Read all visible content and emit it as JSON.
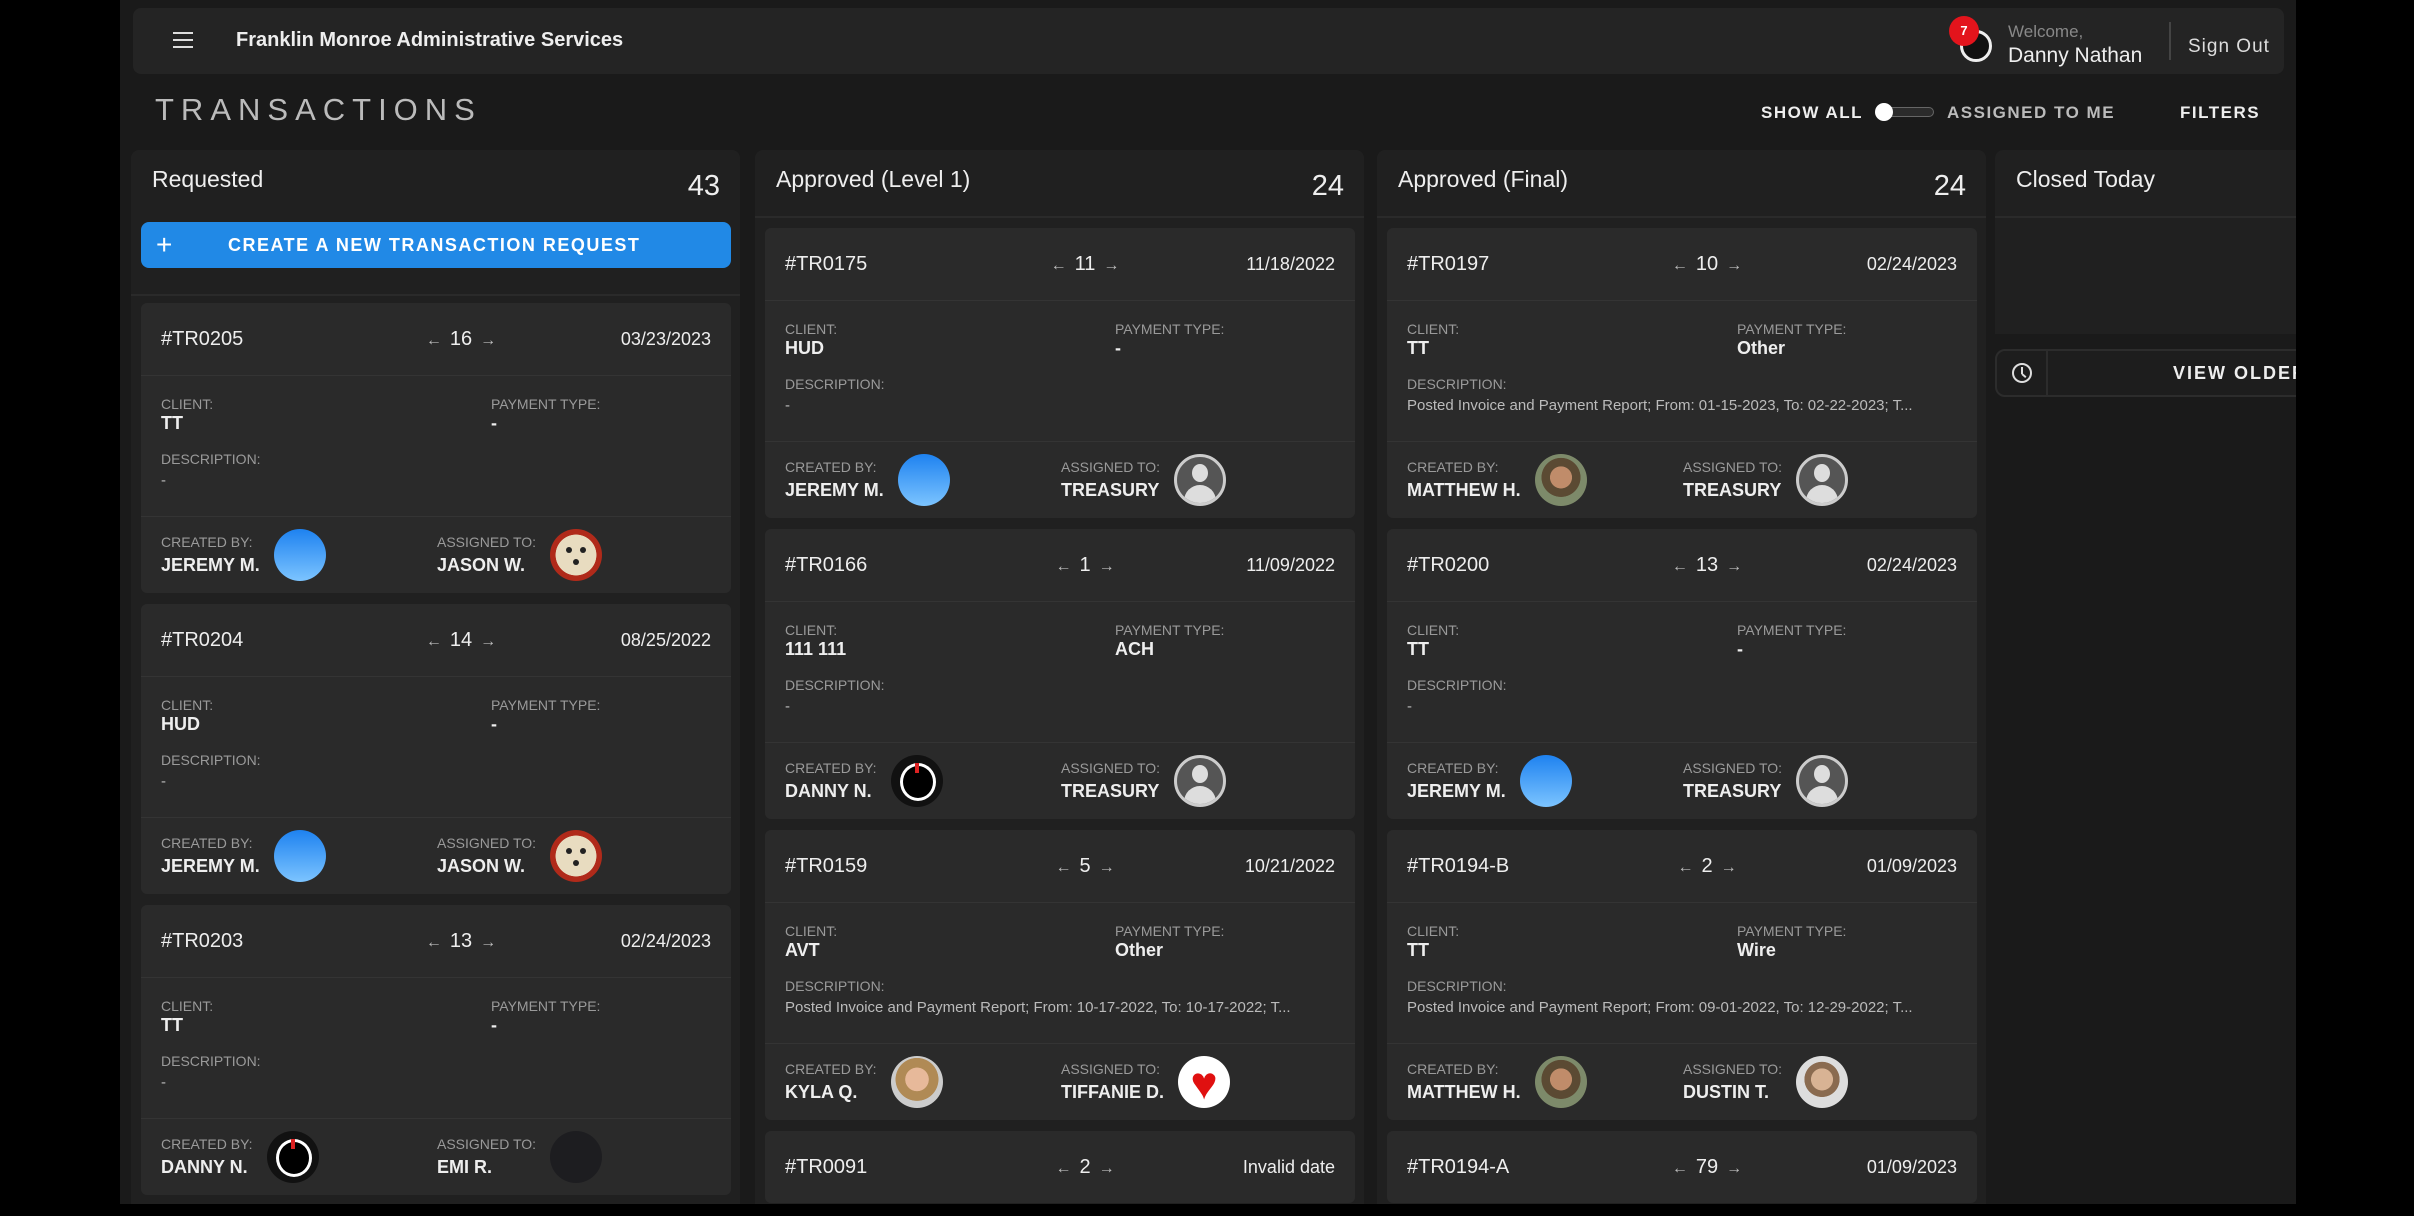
{
  "header": {
    "app_title": "Franklin Monroe Administrative Services",
    "notification_count": "7",
    "welcome": "Welcome,",
    "user_name": "Danny Nathan",
    "sign_out": "Sign Out"
  },
  "page": {
    "title": "TRANSACTIONS",
    "show_all": "SHOW ALL",
    "assigned_to_me": "ASSIGNED TO ME",
    "filters": "FILTERS",
    "toggle_assigned_to_me": false
  },
  "labels": {
    "client": "CLIENT:",
    "payment_type": "PAYMENT TYPE:",
    "description": "DESCRIPTION:",
    "created_by": "CREATED BY:",
    "assigned_to": "ASSIGNED TO:"
  },
  "columns": [
    {
      "title": "Requested",
      "count": "43",
      "create_label": "CREATE A NEW TRANSACTION REQUEST",
      "cards": [
        {
          "id": "#TR0205",
          "num": "16",
          "date": "03/23/2023",
          "client": "TT",
          "payment": "-",
          "description": "-",
          "created_by": "JEREMY M.",
          "created_avatar": "blue",
          "assigned_to": "JASON W.",
          "assigned_avatar": "mask"
        },
        {
          "id": "#TR0204",
          "num": "14",
          "date": "08/25/2022",
          "client": "HUD",
          "payment": "-",
          "description": "-",
          "created_by": "JEREMY M.",
          "created_avatar": "blue",
          "assigned_to": "JASON W.",
          "assigned_avatar": "mask"
        },
        {
          "id": "#TR0203",
          "num": "13",
          "date": "02/24/2023",
          "client": "TT",
          "payment": "-",
          "description": "-",
          "created_by": "DANNY N.",
          "created_avatar": "helmet",
          "assigned_to": "EMI R.",
          "assigned_avatar": "dark"
        }
      ]
    },
    {
      "title": "Approved (Level 1)",
      "count": "24",
      "cards": [
        {
          "id": "#TR0175",
          "num": "11",
          "date": "11/18/2022",
          "client": "HUD",
          "payment": "-",
          "description": "-",
          "created_by": "JEREMY M.",
          "created_avatar": "blue",
          "assigned_to": "TREASURY",
          "assigned_avatar": "tre"
        },
        {
          "id": "#TR0166",
          "num": "1",
          "date": "11/09/2022",
          "client": "111 111",
          "payment": "ACH",
          "description": "-",
          "created_by": "DANNY N.",
          "created_avatar": "helmet",
          "assigned_to": "TREASURY",
          "assigned_avatar": "tre"
        },
        {
          "id": "#TR0159",
          "num": "5",
          "date": "10/21/2022",
          "client": "AVT",
          "payment": "Other",
          "description": "Posted Invoice and Payment Report; From: 10-17-2022, To: 10-17-2022; T...",
          "created_by": "KYLA Q.",
          "created_avatar": "kyla",
          "assigned_to": "TIFFANIE D.",
          "assigned_avatar": "heart"
        },
        {
          "id": "#TR0091",
          "num": "2",
          "date": "Invalid date"
        }
      ]
    },
    {
      "title": "Approved (Final)",
      "count": "24",
      "cards": [
        {
          "id": "#TR0197",
          "num": "10",
          "date": "02/24/2023",
          "client": "TT",
          "payment": "Other",
          "description": "Posted Invoice and Payment Report; From: 01-15-2023, To: 02-22-2023; T...",
          "created_by": "MATTHEW H.",
          "created_avatar": "matt",
          "assigned_to": "TREASURY",
          "assigned_avatar": "tre"
        },
        {
          "id": "#TR0200",
          "num": "13",
          "date": "02/24/2023",
          "client": "TT",
          "payment": "-",
          "description": "-",
          "created_by": "JEREMY M.",
          "created_avatar": "blue",
          "assigned_to": "TREASURY",
          "assigned_avatar": "tre"
        },
        {
          "id": "#TR0194-B",
          "num": "2",
          "date": "01/09/2023",
          "client": "TT",
          "payment": "Wire",
          "description": "Posted Invoice and Payment Report; From: 09-01-2022, To: 12-29-2022; T...",
          "created_by": "MATTHEW H.",
          "created_avatar": "matt",
          "assigned_to": "DUSTIN T.",
          "assigned_avatar": "dustin"
        },
        {
          "id": "#TR0194-A",
          "num": "79",
          "date": "01/09/2023"
        }
      ]
    },
    {
      "title": "Closed Today",
      "view_older": "VIEW OLDER"
    }
  ],
  "colors": {
    "accent": "#2189e6",
    "badge": "#e3141c",
    "background": "#1a1a1a",
    "card": "#2a2a2a"
  }
}
